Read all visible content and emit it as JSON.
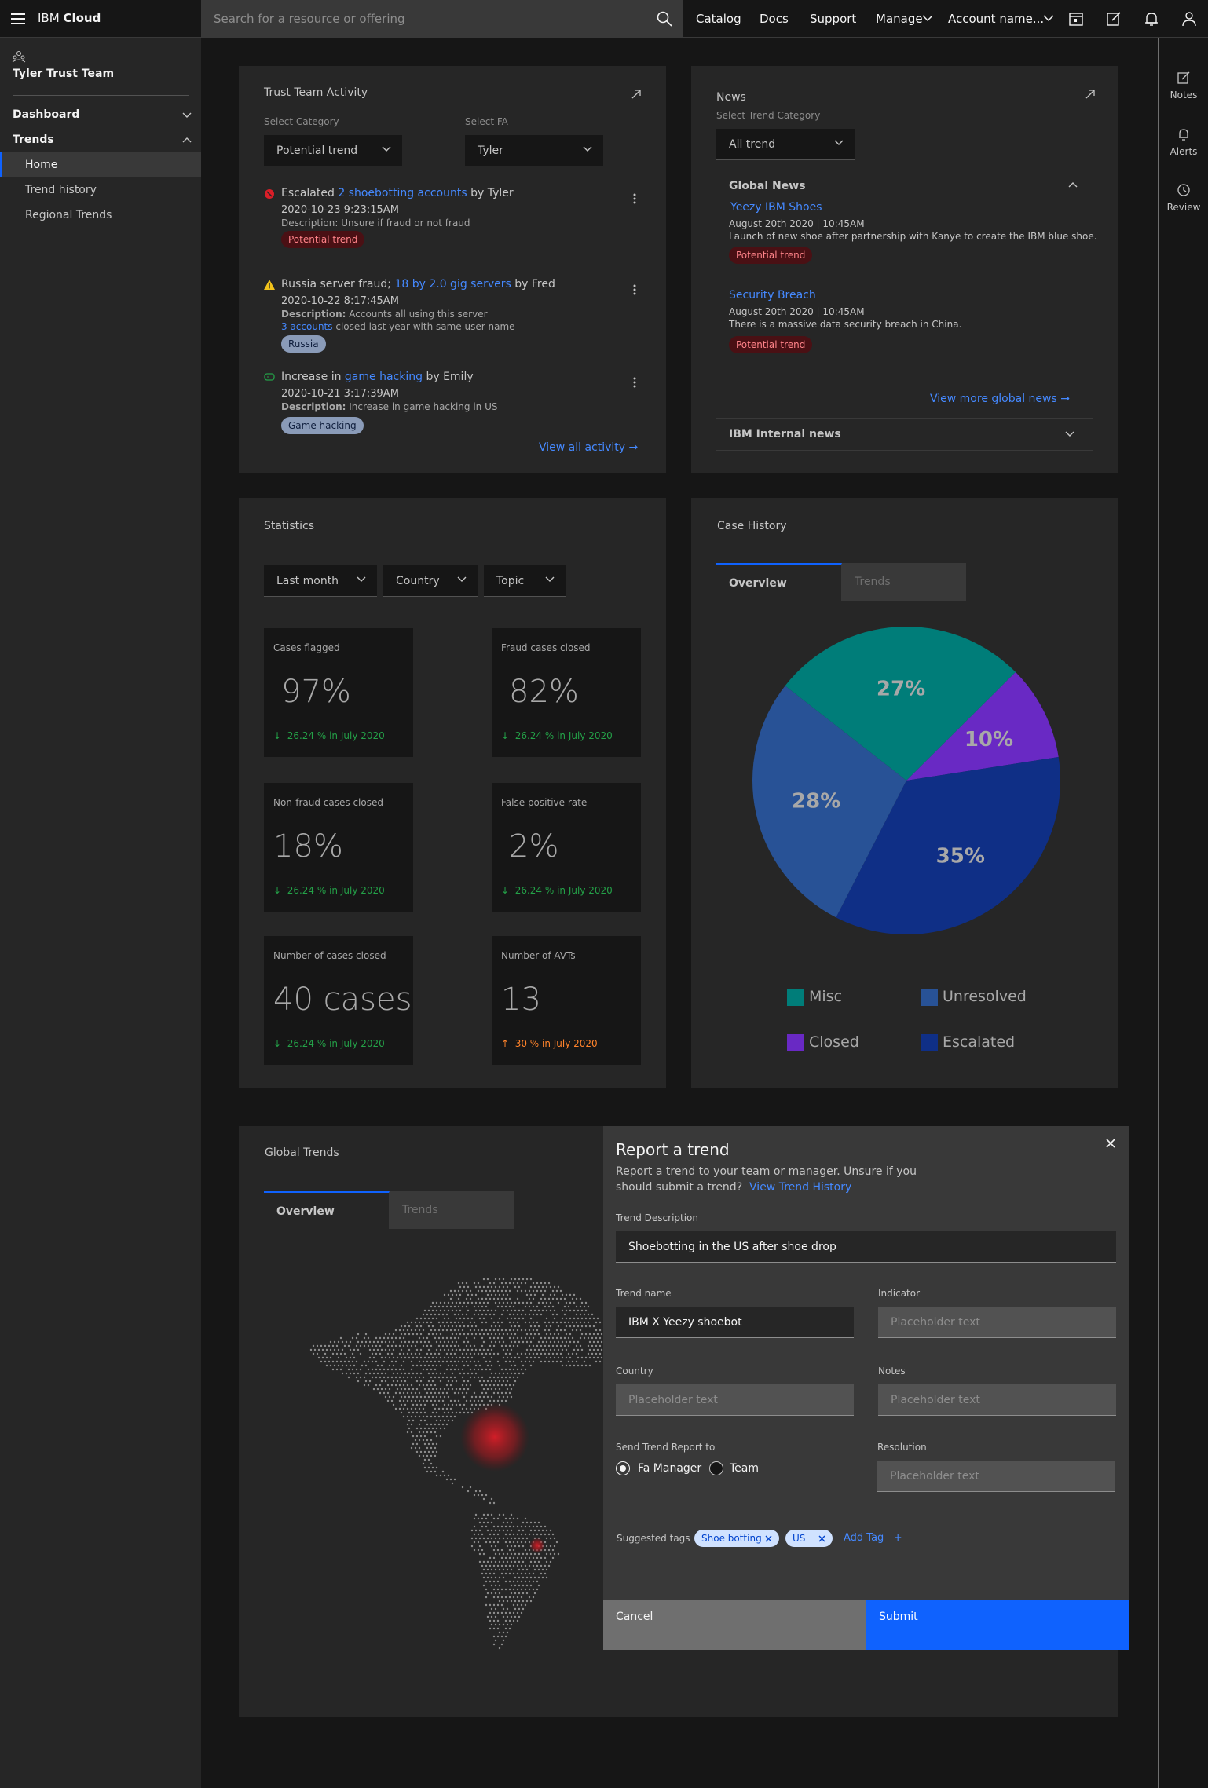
{
  "header": {
    "brand_prefix": "IBM",
    "brand_name": "Cloud",
    "search_placeholder": "Search for a resource or offering",
    "nav": [
      "Catalog",
      "Docs",
      "Support",
      "Manage"
    ],
    "account": "Account name..."
  },
  "sidebar": {
    "team": "Tyler Trust Team",
    "dashboard": "Dashboard",
    "trends": "Trends",
    "items": [
      "Home",
      "Trend history",
      "Regional Trends"
    ]
  },
  "rail": {
    "notes": "Notes",
    "alerts": "Alerts",
    "review": "Review"
  },
  "activity": {
    "title": "Trust Team Activity",
    "category_label": "Select Category",
    "category_value": "Potential trend",
    "fa_label": "Select FA",
    "fa_value": "Tyler",
    "items": [
      {
        "pre": "Escalated",
        "link": "2 shoebotting accounts",
        "post": "by Tyler",
        "time": "2020-10-23 9:23:15AM",
        "desc": "Description: Unsure if fraud or not fraud",
        "tag": "Potential trend"
      },
      {
        "pre": "Russia server fraud;",
        "link": "18 by 2.0 gig servers",
        "post": "by Fred",
        "time": "2020-10-22 8:17:45AM",
        "desc_bold": "Description:",
        "desc": "Accounts all using this server",
        "desc2_link": "3 accounts",
        "desc2": "closed last year with same user name",
        "tag": "Russia"
      },
      {
        "pre": "Increase in",
        "link": "game hacking",
        "post": "by Emily",
        "time": "2020-10-21 3:17:39AM",
        "desc_bold": "Description:",
        "desc": "Increase in game hacking in US",
        "tag": "Game hacking"
      }
    ],
    "view_all": "View all activity"
  },
  "news": {
    "title": "News",
    "category_label": "Select Trend Category",
    "category_value": "All trend",
    "global_title": "Global News",
    "items": [
      {
        "title": "Yeezy IBM Shoes",
        "date": "August 20th 2020 | 10:45AM",
        "desc": "Launch of new shoe after partnership with Kanye to create the IBM blue shoe.",
        "tag": "Potential trend"
      },
      {
        "title": "Security Breach",
        "date": "August 20th 2020 | 10:45AM",
        "desc": "There is a massive data security breach in China.",
        "tag": "Potential trend"
      }
    ],
    "view_more": "View more global news",
    "internal_title": "IBM Internal news"
  },
  "statistics": {
    "title": "Statistics",
    "filters": [
      "Last month",
      "Country",
      "Topic"
    ],
    "tiles": [
      {
        "label": "Cases flagged",
        "value": "97%",
        "change": "26.24 % in July 2020",
        "dir": "down"
      },
      {
        "label": "Fraud cases closed",
        "value": "82%",
        "change": "26.24 % in July 2020",
        "dir": "down"
      },
      {
        "label": "Non-fraud cases closed",
        "value": "18%",
        "change": "26.24 % in July 2020",
        "dir": "down"
      },
      {
        "label": "False positive rate",
        "value": "2%",
        "change": "26.24 % in July 2020",
        "dir": "down"
      },
      {
        "label": "Number of cases closed",
        "value": "40 cases",
        "change": "26.24 % in July 2020",
        "dir": "down"
      },
      {
        "label": "Number of AVTs",
        "value": "13",
        "change": "30 % in July 2020",
        "dir": "up"
      }
    ]
  },
  "case_history": {
    "title": "Case History",
    "tabs": [
      "Overview",
      "Trends"
    ]
  },
  "chart_data": {
    "type": "pie",
    "title": "",
    "slices": [
      {
        "name": "Misc",
        "value": 27,
        "label": "27%",
        "color": "#007d79"
      },
      {
        "name": "Closed",
        "value": 10,
        "label": "10%",
        "color": "#6929c4"
      },
      {
        "name": "Escalated",
        "value": 35,
        "label": "35%",
        "color": "#0f2f86"
      },
      {
        "name": "Unresolved",
        "value": 28,
        "label": "28%",
        "color": "#285296"
      }
    ],
    "legend": [
      "Misc",
      "Unresolved",
      "Closed",
      "Escalated"
    ],
    "legend_placement": "bottom"
  },
  "global_trends": {
    "title": "Global Trends",
    "tabs": [
      "Overview",
      "Trends"
    ]
  },
  "modal": {
    "title": "Report a trend",
    "desc1": "Report a trend to your team or manager. Unsure if you",
    "desc2": "should submit a trend?",
    "desc_link": "View Trend History",
    "trend_desc_label": "Trend Description",
    "trend_desc_value": "Shoebotting in the US after shoe drop",
    "trend_name_label": "Trend name",
    "trend_name_value": "IBM X Yeezy shoebot",
    "indicator_label": "Indicator",
    "placeholder": "Placeholder text",
    "country_label": "Country",
    "notes_label": "Notes",
    "send_label": "Send Trend Report to",
    "radio_options": [
      "Fa Manager",
      "Team"
    ],
    "radio_selected": "Fa Manager",
    "resolution_label": "Resolution",
    "tags_label": "Suggested tags",
    "tags": [
      "Shoe botting",
      "US"
    ],
    "add_tag": "Add Tag",
    "cancel": "Cancel",
    "submit": "Submit"
  }
}
